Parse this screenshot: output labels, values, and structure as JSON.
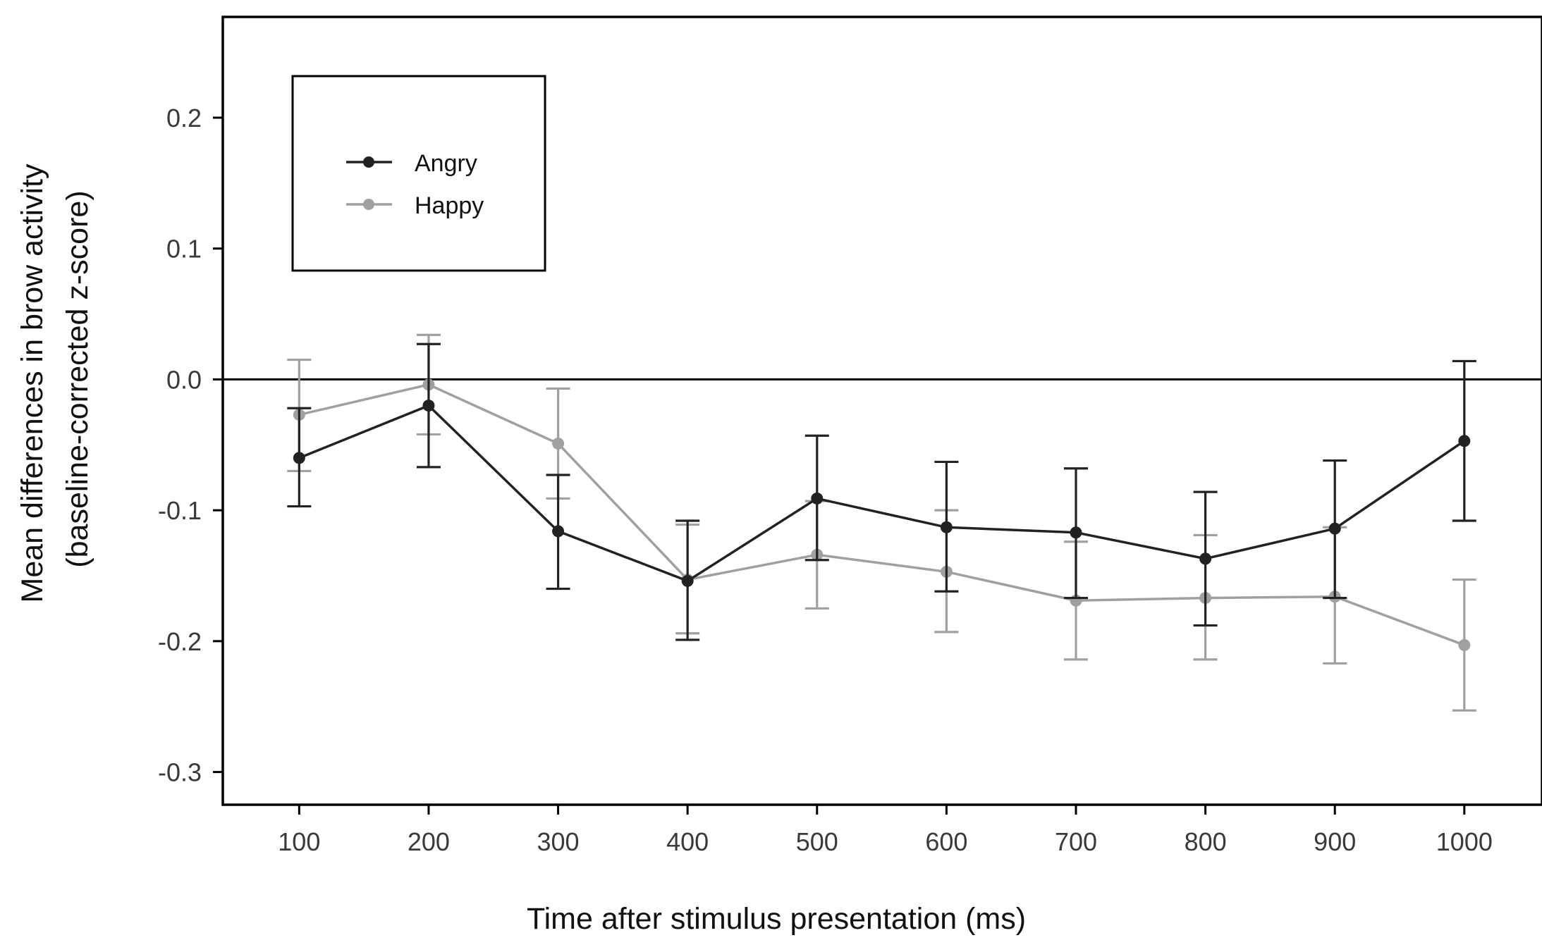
{
  "chart_data": {
    "type": "line",
    "title": "",
    "xlabel": "Time after stimulus presentation (ms)",
    "ylabel_line1": "Mean differences in brow activity",
    "ylabel_line2": "(baseline-corrected z-score)",
    "x": [
      100,
      200,
      300,
      400,
      500,
      600,
      700,
      800,
      900,
      1000
    ],
    "x_tick_labels": [
      "100",
      "200",
      "300",
      "400",
      "500",
      "600",
      "700",
      "800",
      "900",
      "1000"
    ],
    "y_ticks": [
      0.2,
      0.1,
      0.0,
      -0.1,
      -0.2,
      -0.3
    ],
    "y_tick_labels": [
      "0.2",
      "0.1",
      "0.0",
      "-0.1",
      "-0.2",
      "-0.3"
    ],
    "xlim": [
      41,
      1060
    ],
    "ylim": [
      -0.325,
      0.277
    ],
    "reference_line_y": 0.0,
    "grid": false,
    "legend_position": "top-left",
    "series": [
      {
        "name": "Angry",
        "color": "#222222",
        "values": [
          -0.06,
          -0.02,
          -0.116,
          -0.154,
          -0.091,
          -0.113,
          -0.117,
          -0.137,
          -0.114,
          -0.047
        ],
        "error_low": [
          -0.097,
          -0.067,
          -0.16,
          -0.199,
          -0.138,
          -0.162,
          -0.167,
          -0.188,
          -0.167,
          -0.108
        ],
        "error_high": [
          -0.022,
          0.027,
          -0.073,
          -0.108,
          -0.043,
          -0.063,
          -0.068,
          -0.086,
          -0.062,
          0.014
        ]
      },
      {
        "name": "Happy",
        "color": "#a0a0a0",
        "values": [
          -0.027,
          -0.004,
          -0.049,
          -0.153,
          -0.134,
          -0.147,
          -0.169,
          -0.167,
          -0.166,
          -0.203
        ],
        "error_low": [
          -0.07,
          -0.042,
          -0.091,
          -0.194,
          -0.175,
          -0.193,
          -0.214,
          -0.214,
          -0.217,
          -0.253
        ],
        "error_high": [
          0.015,
          0.034,
          -0.007,
          -0.111,
          -0.093,
          -0.1,
          -0.124,
          -0.119,
          -0.113,
          -0.153
        ]
      }
    ]
  }
}
